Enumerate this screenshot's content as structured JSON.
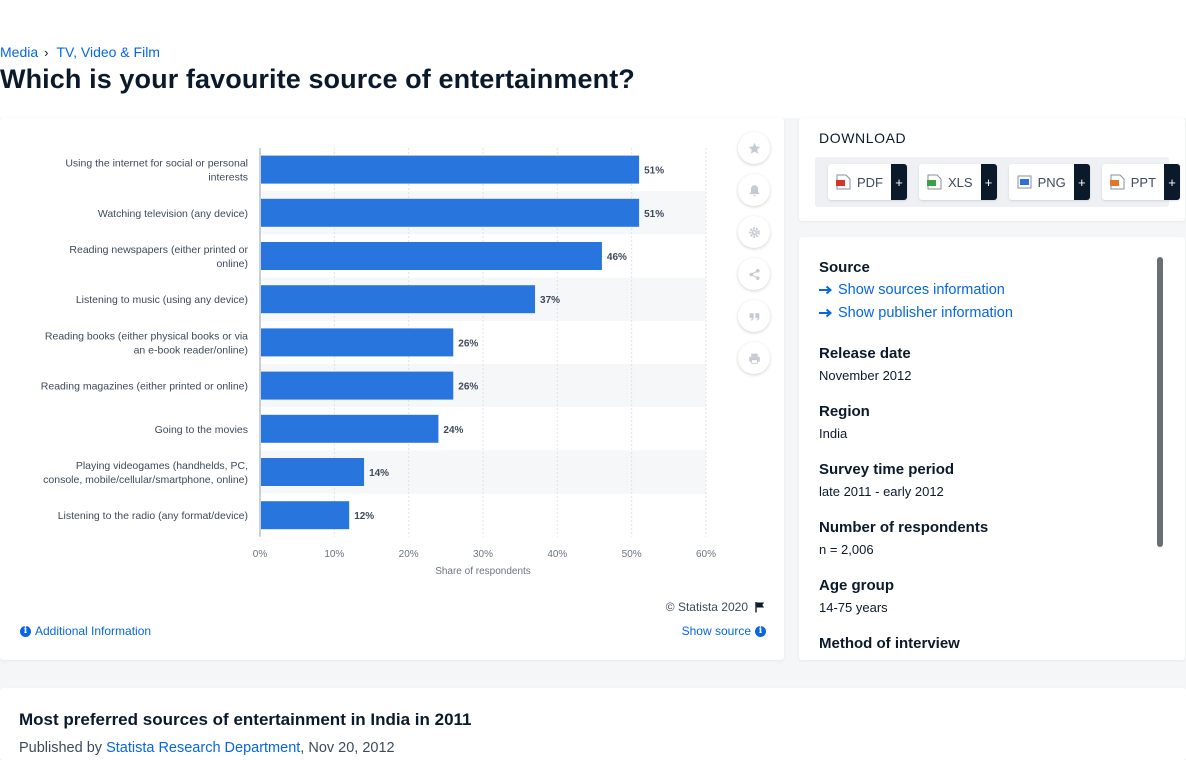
{
  "breadcrumb": {
    "items": [
      "Media",
      "TV, Video & Film"
    ],
    "separator": "›"
  },
  "page_title": "Which is your favourite source of entertainment?",
  "chart_data": {
    "type": "bar",
    "orientation": "horizontal",
    "categories": [
      [
        "Using the internet for social or personal",
        "interests"
      ],
      [
        "Watching television (any device)"
      ],
      [
        "Reading newspapers (either printed or",
        "online)"
      ],
      [
        "Listening to music (using any device)"
      ],
      [
        "Reading books (either physical books or via",
        "an e-book reader/online)"
      ],
      [
        "Reading magazines (either printed or online)"
      ],
      [
        "Going to the movies"
      ],
      [
        "Playing videogames (handhelds, PC,",
        "console, mobile/cellular/smartphone, online)"
      ],
      [
        "Listening to the radio (any format/device)"
      ]
    ],
    "values": [
      51,
      51,
      46,
      37,
      26,
      26,
      24,
      14,
      12
    ],
    "value_labels": [
      "51%",
      "51%",
      "46%",
      "37%",
      "26%",
      "26%",
      "24%",
      "14%",
      "12%"
    ],
    "xlabel": "Share of respondents",
    "xlim": [
      0,
      60
    ],
    "x_ticks": [
      "0%",
      "10%",
      "20%",
      "30%",
      "40%",
      "50%",
      "60%"
    ],
    "grid": true,
    "bar_color": "#2876dd"
  },
  "chart_footer": {
    "copyright": "© Statista 2020",
    "additional_info": "Additional Information",
    "show_source": "Show source"
  },
  "download": {
    "heading": "DOWNLOAD",
    "buttons": [
      {
        "label": "PDF",
        "icon": "pdf-file-icon",
        "color": "#d9342b"
      },
      {
        "label": "XLS",
        "icon": "xls-file-icon",
        "color": "#3aa047"
      },
      {
        "label": "PNG",
        "icon": "png-file-icon",
        "color": "#2d6fd6"
      },
      {
        "label": "PPT",
        "icon": "ppt-file-icon",
        "color": "#e0772a"
      }
    ],
    "plus": "+"
  },
  "details": {
    "source_heading": "Source",
    "links": [
      "Show sources information",
      "Show publisher information"
    ],
    "release_date_heading": "Release date",
    "release_date": "November 2012",
    "region_heading": "Region",
    "region": "India",
    "survey_period_heading": "Survey time period",
    "survey_period": "late 2011 - early 2012",
    "respondents_heading": "Number of respondents",
    "respondents": "n = 2,006",
    "age_group_heading": "Age group",
    "age_group": "14-75 years",
    "method_heading": "Method of interview"
  },
  "bottom": {
    "title": "Most preferred sources of entertainment in India in 2011",
    "published_by": "Published by",
    "publisher": "Statista Research Department",
    "date": ", Nov 20, 2012"
  },
  "colors": {
    "accent": "#0666e5",
    "dark": "#0b1a2b"
  }
}
